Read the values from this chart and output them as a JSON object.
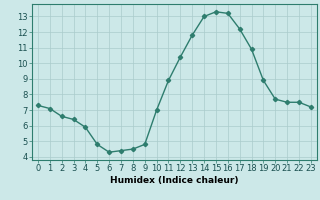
{
  "x": [
    0,
    1,
    2,
    3,
    4,
    5,
    6,
    7,
    8,
    9,
    10,
    11,
    12,
    13,
    14,
    15,
    16,
    17,
    18,
    19,
    20,
    21,
    22,
    23
  ],
  "y": [
    7.3,
    7.1,
    6.6,
    6.4,
    5.9,
    4.8,
    4.3,
    4.4,
    4.5,
    4.8,
    7.0,
    8.9,
    10.4,
    11.8,
    13.0,
    13.3,
    13.2,
    12.2,
    10.9,
    8.9,
    7.7,
    7.5,
    7.5,
    7.2
  ],
  "line_color": "#2e7d6e",
  "marker": "D",
  "marker_size": 2.2,
  "bg_color": "#cce8e8",
  "grid_color": "#aacccc",
  "xlabel": "Humidex (Indice chaleur)",
  "ylim": [
    3.8,
    13.8
  ],
  "xlim": [
    -0.5,
    23.5
  ],
  "yticks": [
    4,
    5,
    6,
    7,
    8,
    9,
    10,
    11,
    12,
    13
  ],
  "xticks": [
    0,
    1,
    2,
    3,
    4,
    5,
    6,
    7,
    8,
    9,
    10,
    11,
    12,
    13,
    14,
    15,
    16,
    17,
    18,
    19,
    20,
    21,
    22,
    23
  ],
  "xlabel_fontsize": 6.5,
  "tick_fontsize": 6,
  "line_width": 1.0
}
